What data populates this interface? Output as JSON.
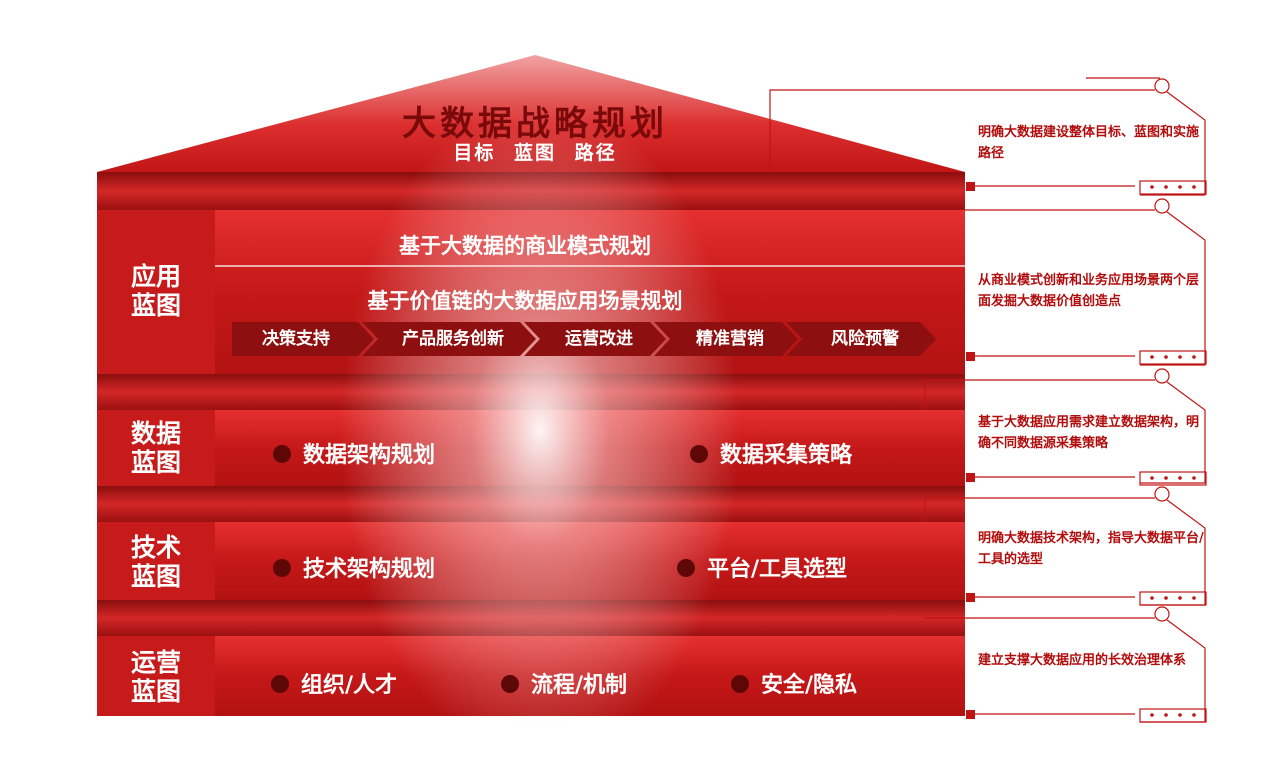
{
  "roof": {
    "title": "大数据战略规划",
    "subtitle": "目标 蓝图 路径"
  },
  "layers": [
    {
      "label_line1": "应用",
      "label_line2": "蓝图",
      "headline1": "基于大数据的商业模式规划",
      "headline2": "基于价值链的大数据应用场景规划",
      "steps": [
        "决策支持",
        "产品服务创新",
        "运营改进",
        "精准营销",
        "风险预警"
      ]
    },
    {
      "label_line1": "数据",
      "label_line2": "蓝图",
      "items": [
        "数据架构规划",
        "数据采集策略"
      ]
    },
    {
      "label_line1": "技术",
      "label_line2": "蓝图",
      "items": [
        "技术架构规划",
        "平台/工具选型"
      ]
    },
    {
      "label_line1": "运营",
      "label_line2": "蓝图",
      "items": [
        "组织/人才",
        "流程/机制",
        "安全/隐私"
      ]
    }
  ],
  "notes": [
    "明确大数据建设整体目标、蓝图和实施路径",
    "从商业模式创新和业务应用场景两个层面发掘大数据价值创造点",
    "基于大数据应用需求建立数据架构，明确不同数据源采集策略",
    "明确大数据技术架构，指导大数据平台/工具的选型",
    "建立支撑大数据应用的长效治理体系"
  ],
  "colors": {
    "red": "#d42020",
    "dark_red": "#8e0f0f",
    "dot": "#5e0707",
    "note_text": "#b20d0d"
  }
}
